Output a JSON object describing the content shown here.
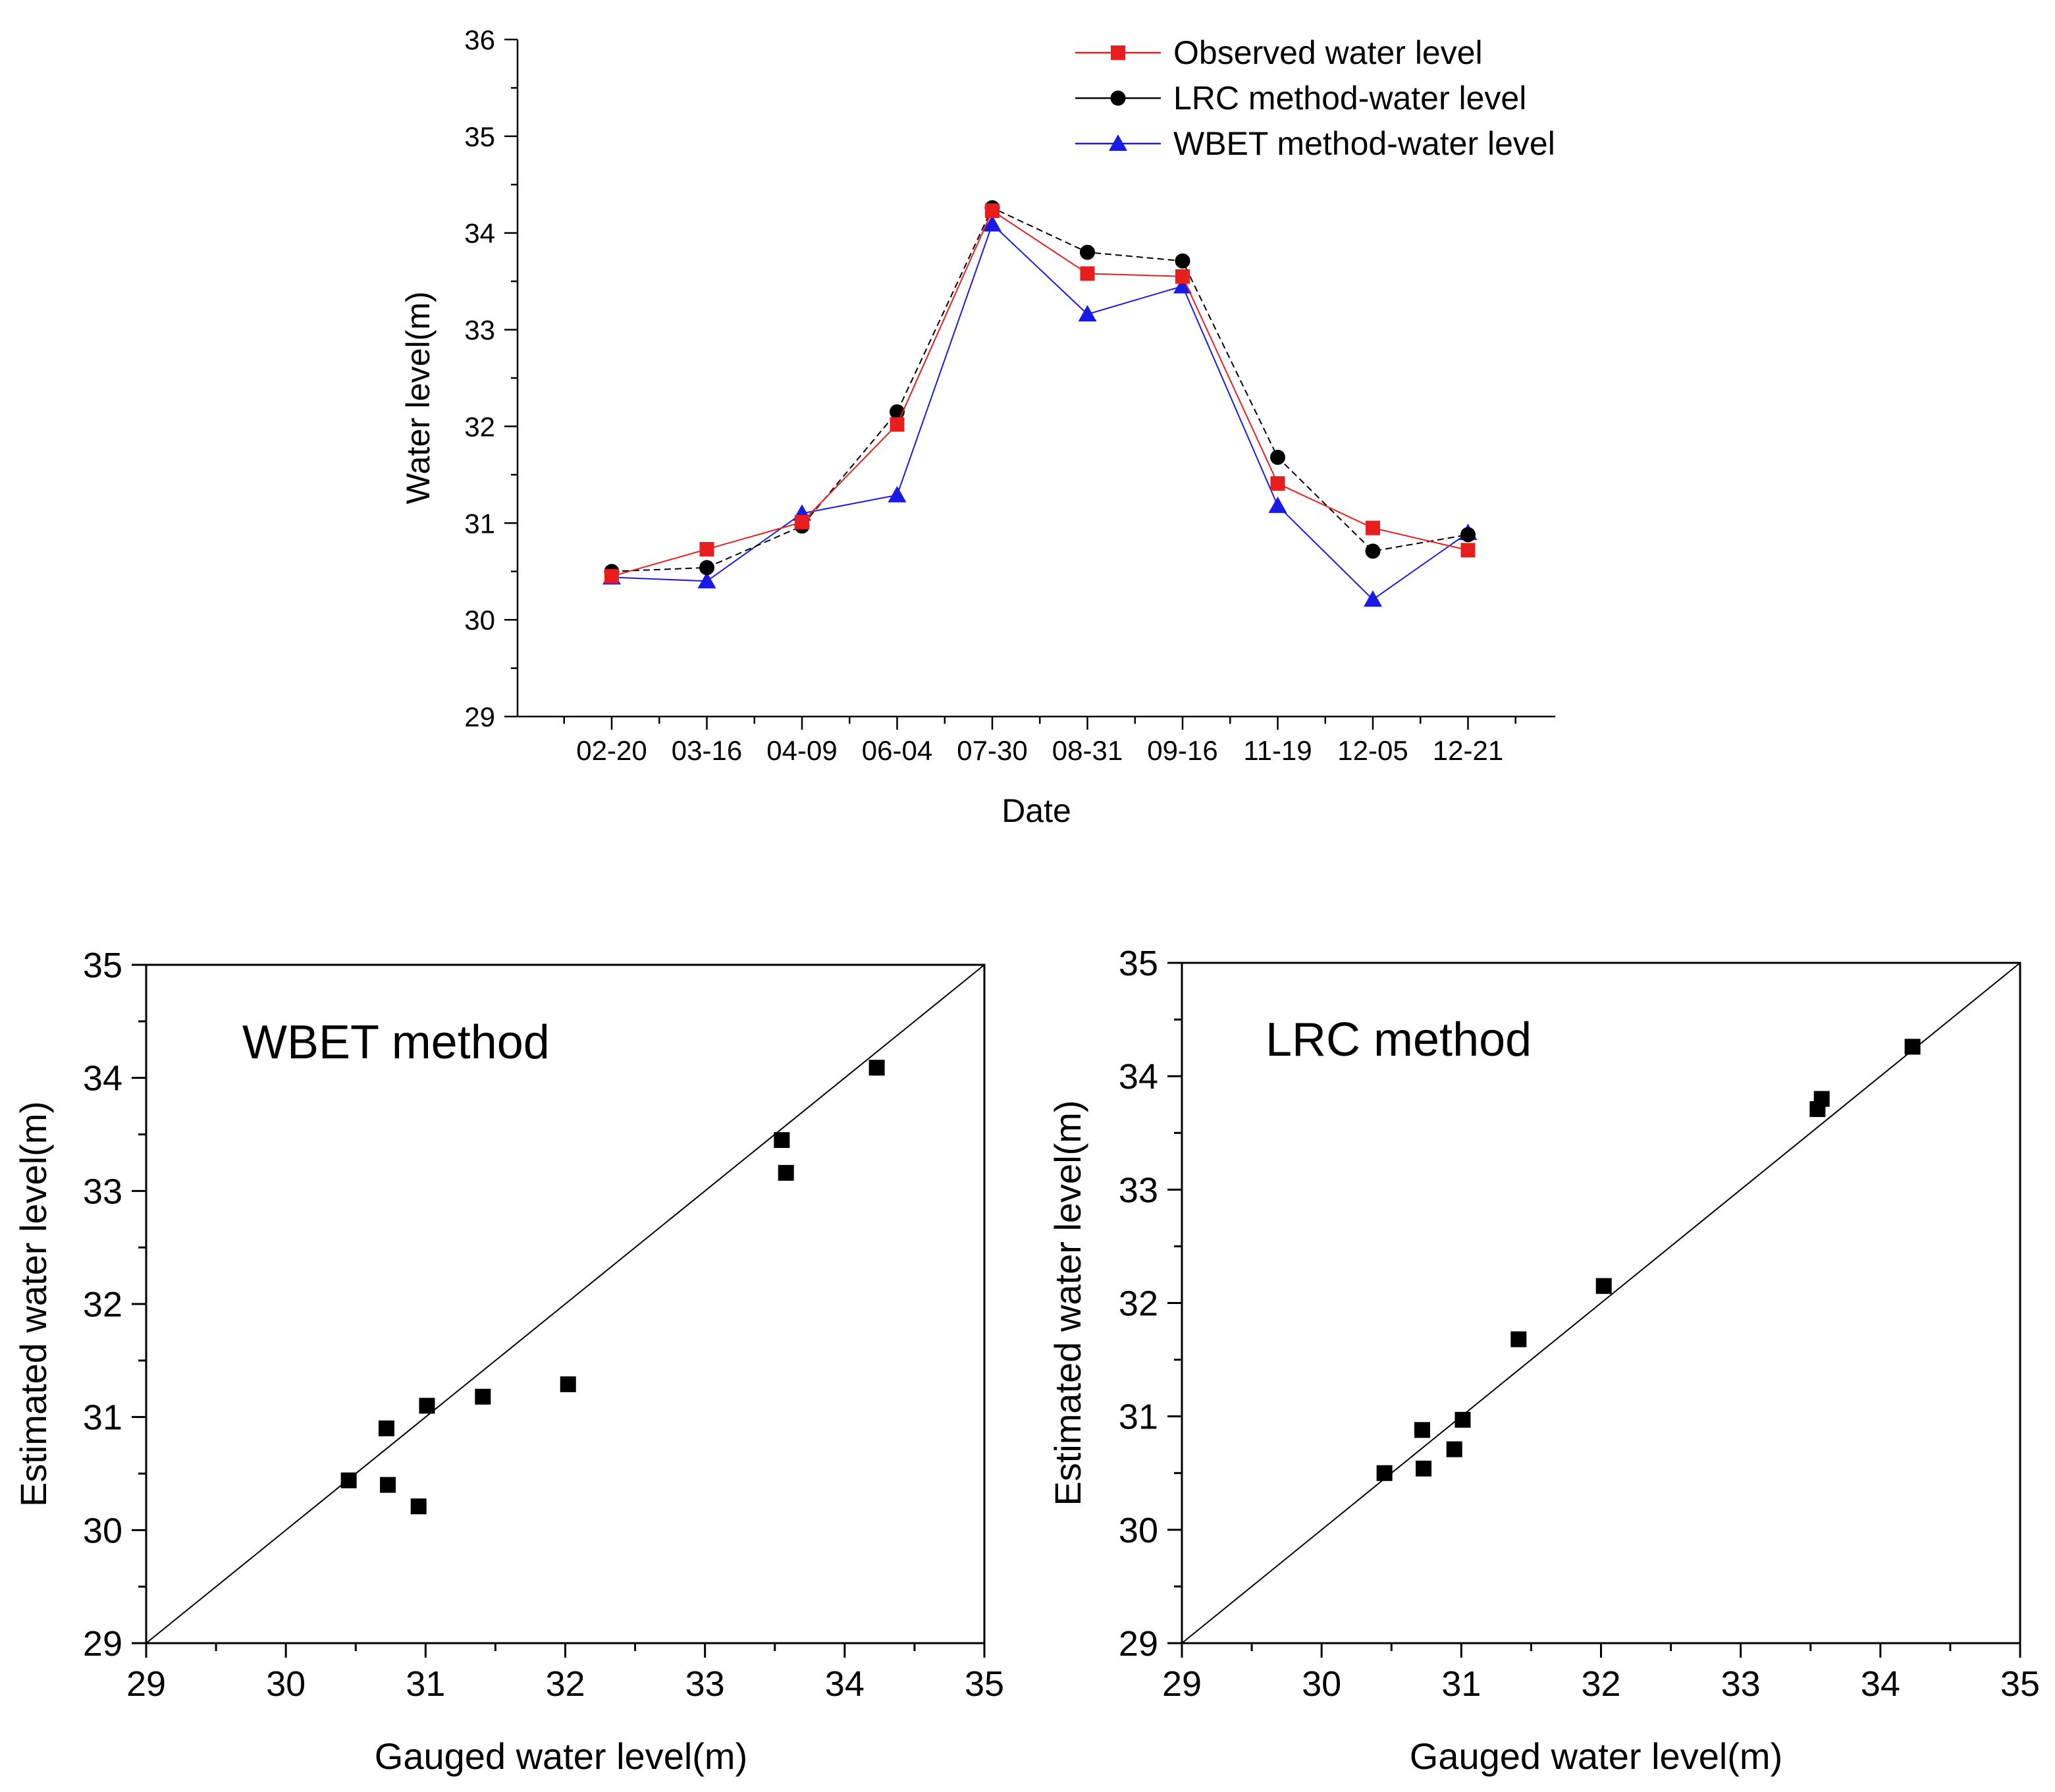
{
  "chart_data": [
    {
      "type": "line",
      "xlabel": "Date",
      "ylabel": "Water level(m)",
      "categories": [
        "02-20",
        "03-16",
        "04-09",
        "06-04",
        "07-30",
        "08-31",
        "09-16",
        "11-19",
        "12-05",
        "12-21"
      ],
      "ylim": [
        29,
        36
      ],
      "yticks": [
        29,
        30,
        31,
        32,
        33,
        34,
        35,
        36
      ],
      "legend_position": "top-right",
      "series": [
        {
          "name": "Observed water level",
          "marker": "square",
          "color": "#e81e1e",
          "values": [
            30.45,
            30.73,
            31.01,
            32.02,
            34.23,
            33.58,
            33.55,
            31.41,
            30.95,
            30.72
          ]
        },
        {
          "name": "LRC method-water level",
          "marker": "circle",
          "color": "#000000",
          "values": [
            30.5,
            30.54,
            30.97,
            32.15,
            34.26,
            33.8,
            33.71,
            31.68,
            30.71,
            30.88
          ]
        },
        {
          "name": "WBET method-water level",
          "marker": "triangle",
          "color": "#1a1ae6",
          "values": [
            30.44,
            30.4,
            31.1,
            31.29,
            34.09,
            33.16,
            33.45,
            31.18,
            30.21,
            30.9
          ]
        }
      ]
    },
    {
      "type": "scatter",
      "title": "WBET method",
      "xlabel": "Gauged water level(m)",
      "ylabel": "Estimated water level(m)",
      "xlim": [
        29,
        35
      ],
      "ylim": [
        29,
        35
      ],
      "xticks": [
        29,
        30,
        31,
        32,
        33,
        34,
        35
      ],
      "yticks": [
        29,
        30,
        31,
        32,
        33,
        34,
        35
      ],
      "reference_line": "1:1",
      "x": [
        30.45,
        30.73,
        31.01,
        32.02,
        34.23,
        33.58,
        33.55,
        31.41,
        30.95,
        30.72
      ],
      "y": [
        30.44,
        30.4,
        31.1,
        31.29,
        34.09,
        33.16,
        33.45,
        31.18,
        30.21,
        30.9
      ]
    },
    {
      "type": "scatter",
      "title": "LRC method",
      "xlabel": "Gauged water level(m)",
      "ylabel": "Estimated water level(m)",
      "xlim": [
        29,
        35
      ],
      "ylim": [
        29,
        35
      ],
      "xticks": [
        29,
        30,
        31,
        32,
        33,
        34,
        35
      ],
      "yticks": [
        29,
        30,
        31,
        32,
        33,
        34,
        35
      ],
      "reference_line": "1:1",
      "x": [
        30.45,
        30.73,
        31.01,
        32.02,
        34.23,
        33.58,
        33.55,
        31.41,
        30.95,
        30.72
      ],
      "y": [
        30.5,
        30.54,
        30.97,
        32.15,
        34.26,
        33.8,
        33.71,
        31.68,
        30.71,
        30.88
      ]
    }
  ]
}
